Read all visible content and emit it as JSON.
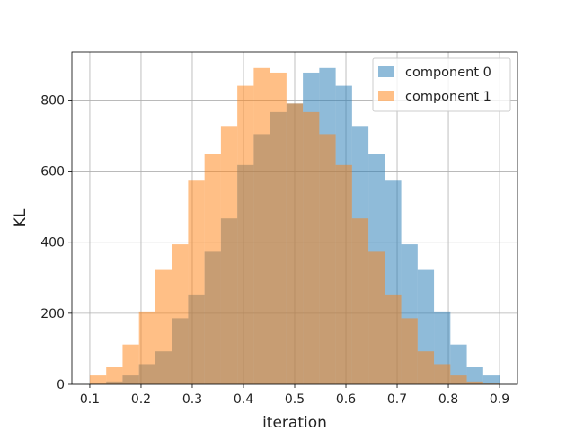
{
  "chart_data": {
    "type": "bar",
    "subtype": "overlapping-histogram",
    "title": "",
    "xlabel": "iteration",
    "ylabel": "KL",
    "xlim": [
      0.065,
      0.935
    ],
    "ylim": [
      0,
      935
    ],
    "xticks": [
      "0.1",
      "0.2",
      "0.3",
      "0.4",
      "0.5",
      "0.6",
      "0.7",
      "0.8",
      "0.9"
    ],
    "yticks": [
      "0",
      "200",
      "400",
      "600",
      "800"
    ],
    "grid": true,
    "legend_position": "top-right",
    "bin_edges": [
      0.1,
      0.132,
      0.164,
      0.196,
      0.228,
      0.26,
      0.292,
      0.324,
      0.356,
      0.388,
      0.42,
      0.452,
      0.484,
      0.516,
      0.548,
      0.58,
      0.612,
      0.644,
      0.676,
      0.708,
      0.74,
      0.772,
      0.804,
      0.836,
      0.868,
      0.9
    ],
    "series": [
      {
        "name": "component 0",
        "color": "#1f77b4",
        "opacity": 0.5,
        "values": [
          2,
          8,
          25,
          57,
          93,
          186,
          253,
          373,
          467,
          617,
          704,
          766,
          790,
          877,
          890,
          840,
          727,
          647,
          573,
          394,
          322,
          205,
          112,
          48,
          25
        ]
      },
      {
        "name": "component 1",
        "color": "#ff7f0e",
        "opacity": 0.5,
        "values": [
          25,
          48,
          112,
          205,
          322,
          394,
          573,
          647,
          727,
          840,
          890,
          877,
          790,
          766,
          704,
          617,
          467,
          373,
          253,
          186,
          93,
          57,
          25,
          8,
          2
        ]
      }
    ]
  }
}
